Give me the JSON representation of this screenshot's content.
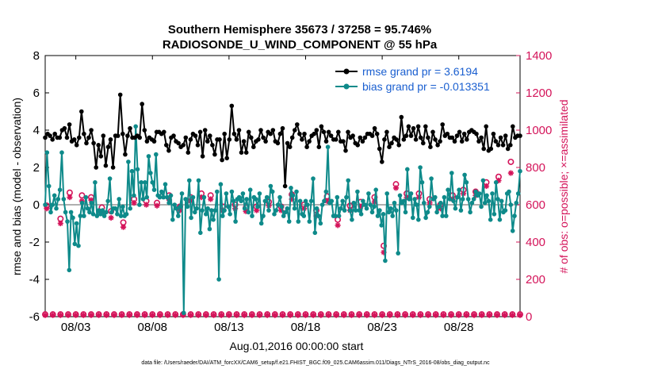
{
  "chart_data": {
    "type": "line",
    "title_line1": "Southern Hemisphere 35673 / 37258 = 95.746%",
    "title_line2": "RADIOSONDE_U_WIND_COMPONENT @ 55 hPa",
    "ylabel_left": "rmse and bias (model - observation)",
    "ylabel_right": "# of obs: o=possible; ×=assimilated",
    "xlabel": "Aug.01,2016 00:00:00 start",
    "footer": "data file: /Users/raeder/DAI/ATM_forcXX/CAM6_setup/f.e21.FHIST_BGC.f09_025.CAM6assim.011/Diags_NTrS_2016-08/obs_diag_output.nc",
    "x_tick_labels": [
      "08/03",
      "08/08",
      "08/13",
      "08/18",
      "08/23",
      "08/28"
    ],
    "x_tick_days": [
      3,
      8,
      13,
      18,
      23,
      28
    ],
    "xlim_days": [
      1,
      32
    ],
    "ylim_left": [
      -6,
      8
    ],
    "ylim_right": [
      0,
      1400
    ],
    "y_ticks_left": [
      -6,
      -4,
      -2,
      0,
      2,
      4,
      6,
      8
    ],
    "y_ticks_right": [
      0,
      200,
      400,
      600,
      800,
      1000,
      1200,
      1400
    ],
    "colors": {
      "rmse": "#000000",
      "bias": "#0e8a8a",
      "obs": "#d4145a",
      "zero_line": "#b0b0b0",
      "legend_text": "#1a5fd0"
    },
    "legend_placement": "top-right",
    "series": [
      {
        "name": "rmse grand pr = 3.6194",
        "axis": "left",
        "values": [
          3.6,
          3.8,
          3.7,
          3.5,
          3.8,
          3.6,
          3.6,
          4.0,
          4.1,
          3.6,
          4.3,
          3.4,
          3.5,
          3.2,
          3.6,
          5.0,
          3.8,
          3.3,
          3.6,
          4.0,
          3.3,
          2.0,
          3.2,
          2.6,
          3.7,
          2.1,
          3.1,
          3.5,
          2.0,
          3.7,
          3.7,
          5.9,
          3.8,
          2.7,
          3.7,
          4.1,
          3.6,
          3.6,
          3.7,
          3.6,
          5.4,
          4.0,
          3.4,
          3.6,
          3.5,
          3.4,
          3.9,
          3.9,
          3.8,
          3.9,
          3.2,
          2.9,
          3.6,
          3.7,
          3.4,
          3.3,
          3.1,
          3.2,
          3.6,
          2.8,
          3.5,
          3.8,
          3.7,
          3.2,
          3.9,
          2.6,
          4.0,
          3.4,
          3.7,
          3.2,
          2.7,
          3.5,
          3.5,
          2.4,
          3.8,
          2.5,
          3.5,
          5.3,
          3.8,
          3.5,
          4.0,
          2.8,
          3.4,
          2.8,
          3.9,
          3.6,
          3.1,
          3.4,
          3.5,
          4.0,
          3.6,
          3.4,
          3.9,
          3.8,
          4.0,
          3.4,
          3.3,
          3.8,
          4.1,
          1.0,
          3.3,
          3.1,
          3.6,
          4.0,
          4.3,
          3.8,
          3.5,
          3.8,
          3.1,
          3.4,
          3.7,
          3.8,
          4.0,
          3.1,
          4.2,
          3.9,
          3.4,
          3.9,
          3.7,
          3.5,
          3.5,
          3.9,
          3.4,
          3.4,
          2.9,
          3.9,
          3.6,
          3.7,
          3.3,
          3.2,
          3.6,
          3.4,
          3.6,
          3.8,
          3.8,
          3.7,
          4.1,
          3.8,
          3.0,
          2.3,
          3.5,
          3.9,
          3.1,
          3.3,
          3.6,
          3.5,
          3.2,
          4.7,
          3.5,
          3.7,
          4.2,
          3.7,
          4.1,
          3.5,
          4.2,
          3.6,
          3.3,
          4.2,
          3.6,
          3.1,
          3.9,
          3.5,
          3.2,
          3.4,
          4.3,
          3.7,
          3.8,
          3.6,
          3.6,
          3.4,
          3.7,
          3.9,
          3.4,
          3.8,
          3.5,
          3.9,
          4.0,
          3.9,
          3.8,
          3.4,
          3.6,
          3.0,
          4.2,
          2.9,
          3.0,
          3.8,
          3.4,
          3.2,
          3.6,
          3.2,
          3.7,
          3.0,
          3.2,
          4.2,
          3.6,
          3.7,
          3.7
        ]
      },
      {
        "name": "bias grand pr = -0.013351",
        "axis": "left",
        "values": [
          0.0,
          2.8,
          1.0,
          -0.4,
          0.0,
          0.5,
          -0.2,
          0.3,
          0.8,
          2.8,
          0.3,
          -0.4,
          -0.9,
          -3.5,
          -0.4,
          -0.7,
          -2.1,
          -1.0,
          -2.2,
          -0.6,
          0.1,
          -0.6,
          0.4,
          -0.2,
          -0.4,
          0.1,
          -0.5,
          1.2,
          -0.6,
          -0.3,
          -0.5,
          -0.3,
          -0.6,
          -0.4,
          0.2,
          1.4,
          -0.4,
          -0.2,
          -0.2,
          -0.5,
          0.3,
          -0.6,
          -0.1,
          -0.6,
          -0.5,
          2.3,
          -0.2,
          1.8,
          0.5,
          4.2,
          1.9,
          0.0,
          1.2,
          0.3,
          1.2,
          0.4,
          2.6,
          1.7,
          1.2,
          0.8,
          2.7,
          0.5,
          0.4,
          0.7,
          0.4,
          1.1,
          0.4,
          0.1,
          0.5,
          -0.8,
          0.0,
          -0.2,
          -0.6,
          -0.1,
          0.6,
          -5.8,
          0.3,
          -0.1,
          1.3,
          -0.7,
          0.4,
          -0.4,
          -0.2,
          1.3,
          -1.5,
          -0.3,
          0.4,
          -0.5,
          -0.2,
          -1.3,
          -0.3,
          -0.8,
          -0.3,
          0.7,
          -4.0,
          1.1,
          -0.6,
          -0.3,
          0.6,
          -0.1,
          -0.5,
          0.7,
          0.2,
          -0.9,
          0.3,
          0.4,
          0.2,
          0.6,
          -0.2,
          0.3,
          -0.4,
          0.8,
          -0.6,
          0.4,
          0.3,
          -0.1,
          0.6,
          -1.0,
          -0.6,
          0.2,
          0.4,
          -0.3,
          1.0,
          0.7,
          -0.5,
          -0.3,
          0.0,
          0.4,
          -0.1,
          -0.6,
          -0.4,
          -0.2,
          -0.9,
          0.9,
          0.5,
          -0.2,
          0.7,
          -0.9,
          0.2,
          -0.5,
          -0.6,
          0.2,
          0.0,
          -0.9,
          0.2,
          1.4,
          -1.5,
          -0.2,
          -0.6,
          -1.0,
          0.0,
          0.2,
          0.7,
          3.1,
          0.1,
          0.2,
          -0.6,
          -0.6,
          0.4,
          -0.6,
          -0.2,
          0.2,
          -0.3,
          0.4,
          1.3,
          -0.3,
          -0.8,
          0.1,
          -0.3,
          0.7,
          -0.3,
          -0.5,
          0.2,
          0.0,
          -0.2,
          0.6,
          0.0,
          -0.4,
          -0.1,
          0.8,
          -0.6,
          -0.3,
          -1.1,
          -0.5,
          -3.0,
          0.6,
          -0.4,
          -0.2,
          -0.6,
          0.1,
          -0.3,
          -2.6,
          0.5,
          0.1,
          0.2,
          -0.4,
          1.9,
          0.3,
          0.6,
          -0.7,
          0.3,
          0.0,
          -0.8,
          2.0,
          1.2,
          0.1,
          -0.7,
          -0.4,
          -0.1,
          1.4,
          0.3,
          0.4,
          -0.4,
          -0.1,
          0.1,
          -0.6,
          0.4,
          -0.6,
          0.8,
          0.3,
          1.7,
          0.2,
          -0.2,
          0.4,
          0.8,
          -0.3,
          0.3,
          1.6,
          1.2,
          0.3,
          -0.4,
          0.1,
          0.3,
          0.7,
          0.5,
          0.6,
          -0.1,
          1.3,
          0.1,
          0.5,
          0.2,
          -0.8,
          0.6,
          -0.5,
          1.2,
          0.3,
          -0.8,
          0.2,
          -0.4,
          -0.3,
          0.6,
          0.7,
          0.0,
          -1.4,
          -0.6,
          0.1,
          0.6,
          1.8
        ]
      },
      {
        "name": "obs possible",
        "axis": "right",
        "marker": "circle",
        "days": [
          1.1,
          2.0,
          2.6,
          3.4,
          4.0,
          4.7,
          5.3,
          6.1,
          6.8,
          7.6,
          8.3,
          9.1,
          9.8,
          10.5,
          11.2,
          11.8,
          12.6,
          13.4,
          14.1,
          14.8,
          15.6,
          16.4,
          17.1,
          17.9,
          18.7,
          19.4,
          20.1,
          20.9,
          21.6,
          22.5,
          23.1,
          23.9,
          24.6,
          25.4,
          26.1,
          26.8,
          27.6,
          28.3,
          29.1,
          29.8,
          30.6,
          31.4
        ],
        "values": [
          595,
          525,
          665,
          650,
          640,
          585,
          565,
          505,
          630,
          620,
          610,
          650,
          590,
          640,
          660,
          650,
          590,
          600,
          585,
          590,
          615,
          590,
          655,
          600,
          570,
          645,
          520,
          595,
          615,
          640,
          380,
          710,
          660,
          660,
          630,
          600,
          650,
          680,
          670,
          720,
          750,
          830
        ]
      },
      {
        "name": "obs assimilated",
        "axis": "right",
        "marker": "asterisk",
        "days": [
          1.1,
          2.0,
          2.6,
          3.4,
          4.0,
          4.7,
          5.3,
          6.1,
          6.8,
          7.6,
          8.3,
          9.1,
          9.8,
          10.5,
          11.2,
          11.8,
          12.6,
          13.4,
          14.1,
          14.8,
          15.6,
          16.4,
          17.1,
          17.9,
          18.7,
          19.4,
          20.1,
          20.9,
          21.6,
          22.5,
          23.1,
          23.9,
          24.6,
          25.4,
          26.1,
          26.8,
          27.6,
          28.3,
          29.1,
          29.8,
          30.6,
          31.4
        ],
        "values": [
          580,
          500,
          640,
          620,
          625,
          560,
          530,
          480,
          610,
          600,
          595,
          625,
          570,
          620,
          640,
          630,
          570,
          580,
          565,
          570,
          595,
          570,
          630,
          580,
          540,
          620,
          490,
          570,
          590,
          615,
          345,
          690,
          640,
          640,
          610,
          580,
          630,
          660,
          650,
          700,
          730,
          770
        ]
      }
    ],
    "baseline_obs": {
      "days_step": 0.5,
      "possible": 12,
      "assimilated": 8
    }
  }
}
